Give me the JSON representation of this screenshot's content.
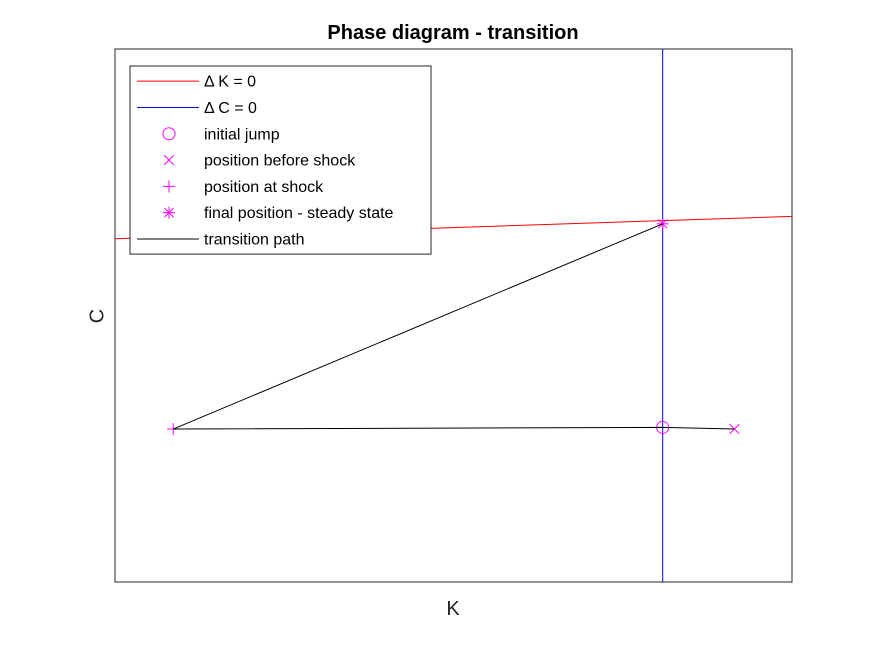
{
  "chart_data": {
    "type": "line",
    "title": "Phase diagram - transition",
    "xlabel": "K",
    "ylabel": "C",
    "xlim": [
      0,
      100
    ],
    "ylim": [
      0,
      100
    ],
    "ticks_shown": false,
    "grid": false,
    "legend_position": "top-left",
    "series": [
      {
        "name": "Δ K = 0",
        "kind": "line",
        "color": "#ff0000",
        "x": [
          0,
          100
        ],
        "y": [
          64.4,
          68.6
        ]
      },
      {
        "name": "Δ C = 0",
        "kind": "line",
        "color": "#0000ff",
        "x": [
          80.9,
          80.9
        ],
        "y": [
          0,
          100
        ]
      },
      {
        "name": "initial jump",
        "kind": "marker",
        "marker": "circle",
        "color": "#ff00ff",
        "x": [
          80.9
        ],
        "y": [
          29.0
        ]
      },
      {
        "name": "position before shock",
        "kind": "marker",
        "marker": "x",
        "color": "#ff00ff",
        "x": [
          91.5
        ],
        "y": [
          28.7
        ]
      },
      {
        "name": "position at shock",
        "kind": "marker",
        "marker": "plus",
        "color": "#ff00ff",
        "x": [
          8.6
        ],
        "y": [
          28.7
        ]
      },
      {
        "name": "final position - steady state",
        "kind": "marker",
        "marker": "asterisk",
        "color": "#ff00ff",
        "x": [
          80.9
        ],
        "y": [
          67.2
        ]
      },
      {
        "name": "transition path",
        "kind": "line",
        "color": "#000000",
        "x": [
          91.5,
          80.9,
          8.6,
          80.9
        ],
        "y": [
          28.7,
          29.0,
          28.7,
          67.2
        ]
      }
    ]
  }
}
